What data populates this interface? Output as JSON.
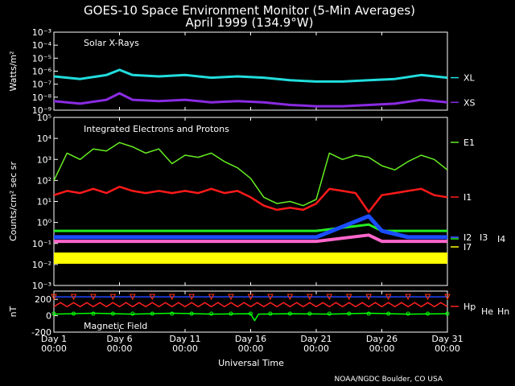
{
  "title": "GOES-10 Space Environment Monitor (5-Min Averages)",
  "subtitle": "April 1999 (134.9°W)",
  "footer": "NOAA/NGDC Boulder, CO USA",
  "colors": {
    "background": "#000000",
    "axes": "#ffffff",
    "XL": "#22dddd",
    "XS": "#8a2be2",
    "E1": "#66ee22",
    "I1": "#ff1a1a",
    "I2": "#ff66cc",
    "I3": "#1a4dff",
    "I4": "#22ee22",
    "I7": "#ffff00",
    "Hp": "#ff2020",
    "He": "#2244ff",
    "Hn": "#00ff00",
    "Hmarker": "#ff3300"
  },
  "chart_data": [
    {
      "type": "line",
      "panel_label": "Solar X-Rays",
      "ylabel": "Watts/m²",
      "yscale": "log",
      "ylim_exp": [
        -9,
        -3
      ],
      "ytick_labels": [
        "10⁻³",
        "10⁻⁴",
        "10⁻⁵",
        "10⁻⁶",
        "10⁻⁷",
        "10⁻⁸",
        "10⁻⁹"
      ],
      "series": [
        {
          "name": "XL",
          "color_key": "XL",
          "x": [
            1,
            3,
            5,
            6,
            7,
            9,
            11,
            13,
            15,
            17,
            19,
            21,
            23,
            25,
            27,
            29,
            31
          ],
          "y_exp": [
            -6.4,
            -6.6,
            -6.3,
            -5.9,
            -6.3,
            -6.4,
            -6.3,
            -6.5,
            -6.4,
            -6.5,
            -6.7,
            -6.8,
            -6.8,
            -6.7,
            -6.6,
            -6.3,
            -6.5
          ]
        },
        {
          "name": "XS",
          "color_key": "XS",
          "x": [
            1,
            3,
            5,
            6,
            7,
            9,
            11,
            13,
            15,
            17,
            19,
            21,
            23,
            25,
            27,
            29,
            31
          ],
          "y_exp": [
            -8.3,
            -8.5,
            -8.2,
            -7.7,
            -8.2,
            -8.3,
            -8.2,
            -8.4,
            -8.3,
            -8.4,
            -8.6,
            -8.7,
            -8.7,
            -8.6,
            -8.5,
            -8.2,
            -8.4
          ]
        }
      ]
    },
    {
      "type": "line",
      "panel_label": "Integrated Electrons and Protons",
      "ylabel": "Counts/cm² sec sr",
      "yscale": "log",
      "ylim_exp": [
        -3,
        5
      ],
      "ytick_labels": [
        "10⁵",
        "10⁴",
        "10³",
        "10²",
        "10¹",
        "10⁰",
        "10⁻¹",
        "10⁻²",
        "10⁻³"
      ],
      "series": [
        {
          "name": "E1",
          "color_key": "E1",
          "x": [
            1,
            2,
            3,
            4,
            5,
            6,
            7,
            8,
            9,
            10,
            11,
            12,
            13,
            14,
            15,
            16,
            17,
            18,
            19,
            20,
            21,
            22,
            23,
            24,
            25,
            26,
            27,
            28,
            29,
            30,
            31
          ],
          "y_exp": [
            2.0,
            3.3,
            3.0,
            3.5,
            3.4,
            3.8,
            3.6,
            3.3,
            3.5,
            2.8,
            3.2,
            3.1,
            3.3,
            2.9,
            2.6,
            2.1,
            1.2,
            0.9,
            1.0,
            0.8,
            1.1,
            3.3,
            3.0,
            3.2,
            3.1,
            2.7,
            2.5,
            2.9,
            3.2,
            3.0,
            2.5
          ]
        },
        {
          "name": "I1",
          "color_key": "I1",
          "x": [
            1,
            2,
            3,
            4,
            5,
            6,
            7,
            8,
            9,
            10,
            11,
            12,
            13,
            14,
            15,
            16,
            17,
            18,
            19,
            20,
            21,
            22,
            23,
            24,
            25,
            26,
            27,
            28,
            29,
            30,
            31
          ],
          "y_exp": [
            1.3,
            1.5,
            1.4,
            1.6,
            1.4,
            1.7,
            1.5,
            1.4,
            1.5,
            1.4,
            1.5,
            1.4,
            1.6,
            1.4,
            1.5,
            1.2,
            0.8,
            0.6,
            0.7,
            0.6,
            0.9,
            1.6,
            1.5,
            1.4,
            0.5,
            1.3,
            1.4,
            1.5,
            1.6,
            1.3,
            1.2
          ]
        },
        {
          "name": "I2",
          "color_key": "I2",
          "x": [
            1,
            6,
            11,
            16,
            21,
            25,
            26,
            28,
            31
          ],
          "y_exp": [
            -0.9,
            -0.9,
            -0.9,
            -0.9,
            -0.9,
            -0.6,
            -0.9,
            -0.9,
            -0.9
          ]
        },
        {
          "name": "I3",
          "color_key": "I3",
          "x": [
            1,
            6,
            11,
            16,
            21,
            25,
            26,
            28,
            31
          ],
          "y_exp": [
            -0.7,
            -0.7,
            -0.7,
            -0.7,
            -0.7,
            0.3,
            -0.4,
            -0.7,
            -0.7
          ]
        },
        {
          "name": "I4",
          "color_key": "I4",
          "x": [
            1,
            6,
            11,
            16,
            21,
            25,
            26,
            28,
            31
          ],
          "y_exp": [
            -0.4,
            -0.4,
            -0.4,
            -0.4,
            -0.4,
            -0.1,
            -0.4,
            -0.4,
            -0.4
          ]
        },
        {
          "name": "I7",
          "color_key": "I7",
          "x": [
            1,
            6,
            11,
            16,
            21,
            26,
            31
          ],
          "y_exp": [
            -1.7,
            -1.7,
            -1.7,
            -1.7,
            -1.7,
            -1.7,
            -1.7
          ]
        }
      ]
    },
    {
      "type": "line",
      "panel_label": "Magnetic Field",
      "ylabel": "nT",
      "ylim": [
        -200,
        300
      ],
      "yticks": [
        200,
        0,
        -200
      ],
      "series": [
        {
          "name": "Hp",
          "color_key": "Hp",
          "x": [
            1,
            1.5,
            2,
            2.5,
            3,
            3.5,
            4,
            4.5,
            5,
            5.5,
            6,
            6.5,
            7,
            7.5,
            8,
            8.5,
            9,
            9.5,
            10,
            10.5,
            11,
            11.5,
            12,
            12.5,
            13,
            13.5,
            14,
            14.5,
            15,
            15.5,
            16,
            16.5,
            17,
            17.5,
            18,
            18.5,
            19,
            19.5,
            20,
            20.5,
            21,
            21.5,
            22,
            22.5,
            23,
            23.5,
            24,
            24.5,
            25,
            25.5,
            26,
            26.5,
            27,
            27.5,
            28,
            28.5,
            29,
            29.5,
            30,
            30.5,
            31
          ],
          "y": [
            110,
            160,
            110,
            160,
            110,
            160,
            110,
            160,
            110,
            160,
            110,
            160,
            110,
            160,
            110,
            160,
            110,
            160,
            110,
            160,
            110,
            160,
            110,
            160,
            110,
            160,
            110,
            160,
            110,
            160,
            110,
            160,
            110,
            160,
            110,
            160,
            110,
            160,
            110,
            160,
            110,
            160,
            110,
            160,
            110,
            160,
            110,
            160,
            110,
            160,
            110,
            160,
            110,
            160,
            110,
            160,
            110,
            160,
            110,
            160,
            110
          ]
        },
        {
          "name": "He",
          "color_key": "He",
          "x": [
            1,
            31
          ],
          "y": [
            230,
            230
          ]
        },
        {
          "name": "Hn",
          "color_key": "Hn",
          "x": [
            1,
            4,
            7,
            10,
            13,
            16,
            16.3,
            16.6,
            19,
            22,
            25,
            28,
            31
          ],
          "y": [
            20,
            30,
            20,
            30,
            20,
            25,
            -60,
            20,
            25,
            20,
            30,
            20,
            25
          ]
        }
      ]
    }
  ],
  "x_axis": {
    "label": "Universal Time",
    "range": [
      1,
      31
    ],
    "ticks": [
      {
        "day": 1,
        "label": "Day 1",
        "time": "00:00"
      },
      {
        "day": 6,
        "label": "Day 6",
        "time": "00:00"
      },
      {
        "day": 11,
        "label": "Day 11",
        "time": "00:00"
      },
      {
        "day": 16,
        "label": "Day 16",
        "time": "00:00"
      },
      {
        "day": 21,
        "label": "Day 21",
        "time": "00:00"
      },
      {
        "day": 26,
        "label": "Day 26",
        "time": "00:00"
      },
      {
        "day": 31,
        "label": "Day 31",
        "time": "00:00"
      }
    ]
  },
  "legend": {
    "xrays": [
      "XL",
      "XS"
    ],
    "particles": [
      "E1",
      "I1",
      "I2",
      "I3",
      "I4",
      "I7"
    ],
    "magnetic": [
      "Hp",
      "He",
      "Hn"
    ]
  }
}
